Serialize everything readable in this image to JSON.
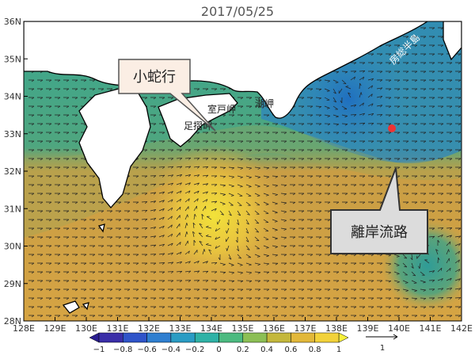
{
  "title": "2017/05/25",
  "axes": {
    "longitude_labels": [
      "128E",
      "129E",
      "130E",
      "131E",
      "132E",
      "133E",
      "134E",
      "135E",
      "136E",
      "137E",
      "138E",
      "139E",
      "140E",
      "141E",
      "142E"
    ],
    "latitude_labels": [
      "28N",
      "29N",
      "30N",
      "31N",
      "32N",
      "33N",
      "34N",
      "35N",
      "36N"
    ]
  },
  "colorbar": {
    "labels": [
      "−1",
      "−0.8",
      "−0.6",
      "−0.4",
      "−0.2",
      "0",
      "0.2",
      "0.4",
      "0.6",
      "0.8",
      "1"
    ]
  },
  "vector_scale": {
    "label": "1"
  },
  "callouts": [
    {
      "text": "小蛇行"
    },
    {
      "text": "離岸流路"
    }
  ],
  "place_labels": [
    "足摺岬",
    "室戸岬",
    "潮岬",
    "房総半島"
  ]
}
